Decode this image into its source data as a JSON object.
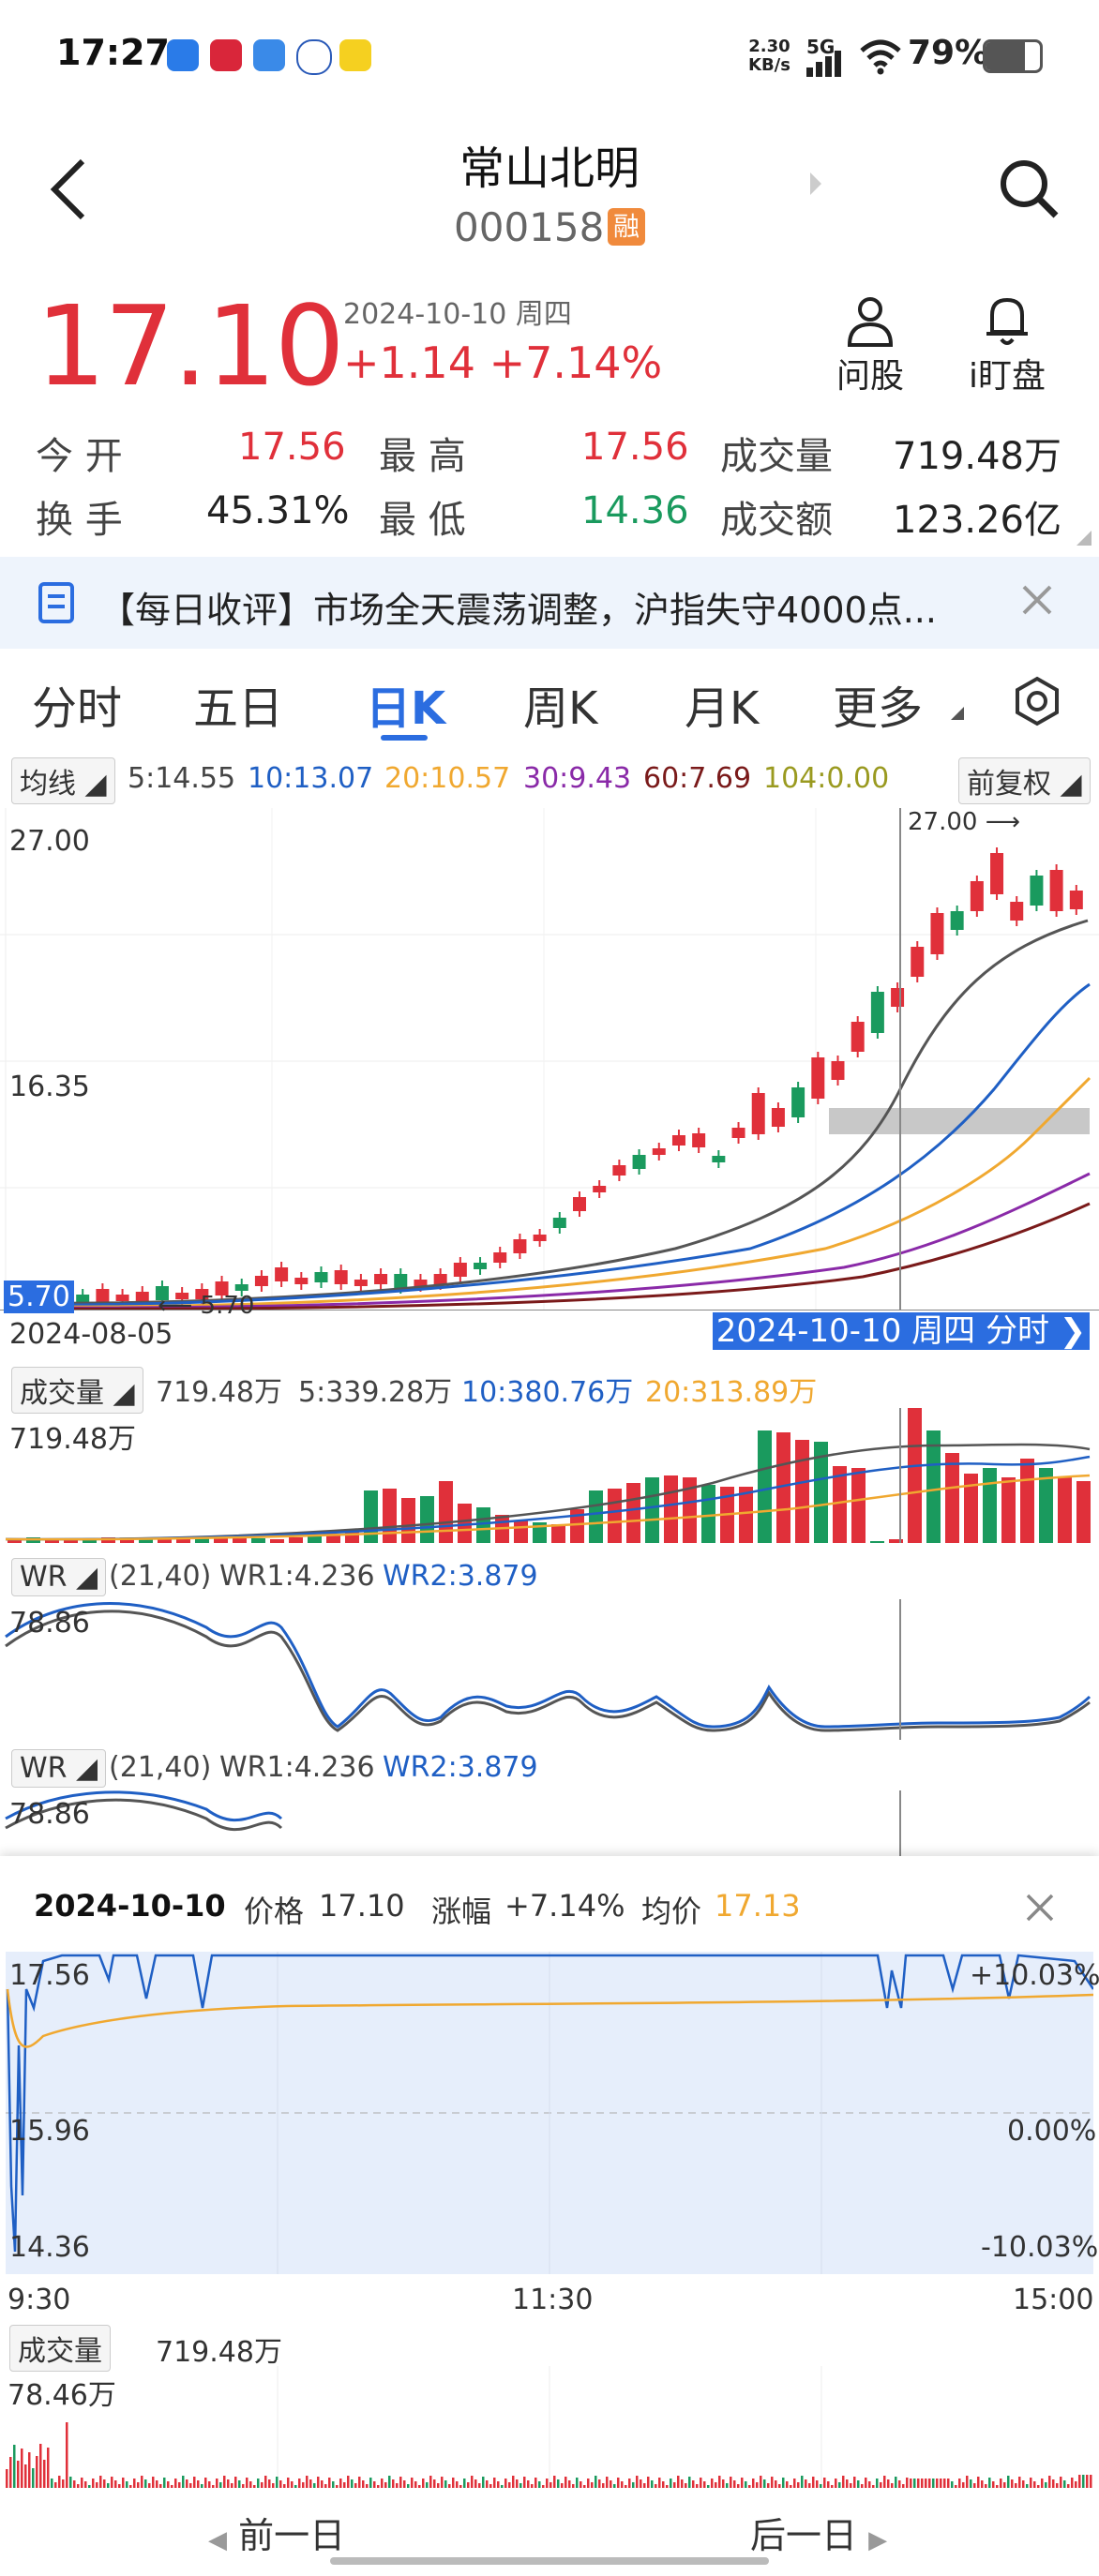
{
  "status": {
    "time": "17:27",
    "net_speed_value": "2.30",
    "net_speed_unit": "KB/s",
    "network": "5G",
    "battery": "79%"
  },
  "header": {
    "name": "常山北明",
    "code": "000158",
    "rong_badge": "融"
  },
  "quote": {
    "price": "17.10",
    "date": "2024-10-10 周四",
    "change": "+1.14",
    "change_pct": "+7.14%"
  },
  "quick_actions": [
    {
      "label": "问股",
      "icon": "person-icon"
    },
    {
      "label": "i盯盘",
      "icon": "bell-icon"
    }
  ],
  "stats": {
    "open_label": "今 开",
    "open": "17.56",
    "high_label": "最 高",
    "high": "17.56",
    "vol_label": "成交量",
    "vol": "719.48万",
    "turnover_label": "换 手",
    "turnover": "45.31%",
    "low_label": "最 低",
    "low": "14.36",
    "amount_label": "成交额",
    "amount": "123.26亿"
  },
  "news": {
    "text": "【每日收评】市场全天震荡调整，沪指失守4000点..."
  },
  "tabs": [
    "分时",
    "五日",
    "日K",
    "周K",
    "月K",
    "更多"
  ],
  "active_tab": "日K",
  "ma_bar": {
    "chip": "均线",
    "ma5": "5:14.55",
    "ma10": "10:13.07",
    "ma20": "20:10.57",
    "ma30": "30:9.43",
    "ma60": "60:7.69",
    "ma104": "104:0.00",
    "adjust": "前复权"
  },
  "kline": {
    "ymax": "27.00",
    "ymid": "16.35",
    "ymin": "5.70",
    "max_mark": "27.00",
    "min_mark": "5.70",
    "start_date": "2024-08-05",
    "cursor_label": "2024-10-10 周四 分时"
  },
  "vol_bar": {
    "chip": "成交量",
    "vol": "719.48万",
    "ma5": "5:339.28万",
    "ma10": "10:380.76万",
    "ma20": "20:313.89万",
    "ymax": "719.48万"
  },
  "wr1": {
    "chip": "WR",
    "param": "(21,40)",
    "wr1": "WR1:4.236",
    "wr2": "WR2:3.879",
    "ymax": "78.86"
  },
  "wr2": {
    "chip": "WR",
    "param": "(21,40)",
    "wr1": "WR1:4.236",
    "wr2": "WR2:3.879",
    "ymax": "78.86"
  },
  "intraday": {
    "date": "2024-10-10",
    "price_label": "价格",
    "price": "17.10",
    "chg_label": "涨幅",
    "chg": "+7.14%",
    "avg_label": "均价",
    "avg": "17.13",
    "top": "17.56",
    "mid": "15.96",
    "bot": "14.36",
    "top_pct": "+10.03%",
    "mid_pct": "0.00%",
    "bot_pct": "-10.03%",
    "t_start": "9:30",
    "t_mid": "11:30",
    "t_end": "15:00",
    "vol_label": "成交量",
    "vol": "719.48万",
    "vol_max": "78.46万"
  },
  "nav": {
    "prev": "前一日",
    "next": "后一日"
  },
  "colors": {
    "up": "#e0303a",
    "down": "#1a9a5e",
    "ma5": "#555555",
    "ma10": "#1f5fc4",
    "ma20": "#f0a830",
    "ma30": "#8a2aa8",
    "ma60": "#7a1a1a",
    "ma104": "#9a9a20",
    "accent": "#2b6de0"
  }
}
